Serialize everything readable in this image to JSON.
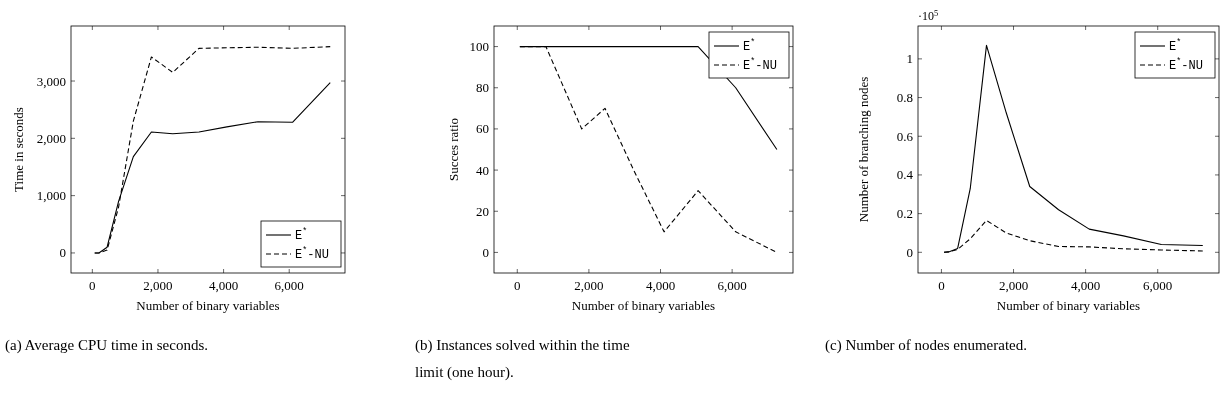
{
  "chart_data": [
    {
      "type": "line",
      "xlabel": "Number of binary variables",
      "ylabel": "Time in seconds",
      "x": [
        72,
        200,
        450,
        800,
        1250,
        1800,
        2450,
        3250,
        4100,
        5050,
        6100,
        7250
      ],
      "xlim": [
        -650,
        7700
      ],
      "xticks": [
        {
          "value": 0,
          "label": "0"
        },
        {
          "value": 2000,
          "label": "2,000"
        },
        {
          "value": 4000,
          "label": "4,000"
        },
        {
          "value": 6000,
          "label": "6,000"
        }
      ],
      "ylim": [
        -350,
        3960
      ],
      "yticks": [
        0,
        {
          "value": 1000,
          "label": "1,000"
        },
        {
          "value": 2000,
          "label": "2,000"
        },
        {
          "value": 3000,
          "label": "3,000"
        }
      ],
      "grid": false,
      "legend": "bottom right",
      "marker": "none",
      "annotations": [
        "(a) Average CPU time in seconds."
      ],
      "series": [
        {
          "name": "E$^{*}$",
          "color": "#000000",
          "line_style": "solid",
          "values": [
            0,
            0,
            100,
            900,
            1680,
            2110,
            2080,
            2110,
            2200,
            2290,
            2280,
            2970
          ]
        },
        {
          "name": "E$^{*}$-NU",
          "color": "#000000",
          "line_style": "dashed",
          "values": [
            0,
            0,
            50,
            800,
            2300,
            3420,
            3150,
            3570,
            3580,
            3590,
            3570,
            3600
          ]
        }
      ]
    },
    {
      "type": "line",
      "xlabel": "Number of binary variables",
      "ylabel": "Succes ratio",
      "x": [
        72,
        200,
        450,
        800,
        1250,
        1800,
        2450,
        3250,
        4100,
        5050,
        6100,
        7250
      ],
      "xlim": [
        -650,
        7700
      ],
      "xticks": [
        {
          "value": 0,
          "label": "0"
        },
        {
          "value": 2000,
          "label": "2,000"
        },
        {
          "value": 4000,
          "label": "4,000"
        },
        {
          "value": 6000,
          "label": "6,000"
        }
      ],
      "ylim": [
        -10,
        110
      ],
      "yticks": [
        0,
        20,
        40,
        60,
        80,
        100
      ],
      "grid": false,
      "legend": "top right",
      "marker": "none",
      "annotations": [
        "(b) Instances solved within the time limit (one hour)."
      ],
      "series": [
        {
          "name": "E$^{*}$",
          "color": "#000000",
          "line_style": "solid",
          "values": [
            100,
            100,
            100,
            100,
            100,
            100,
            100,
            100,
            100,
            100,
            80,
            50
          ]
        },
        {
          "name": "E$^{*}$-NU",
          "color": "#000000",
          "line_style": "dashed",
          "values": [
            100,
            100,
            100,
            100,
            82,
            60,
            70,
            40,
            10,
            30,
            10,
            0
          ]
        }
      ]
    },
    {
      "type": "line",
      "xlabel": "Number of binary variables",
      "ylabel": "Number of branching nodes",
      "x": [
        72,
        200,
        450,
        800,
        1250,
        1800,
        2450,
        3250,
        4100,
        5050,
        6100,
        7250
      ],
      "xlim": [
        -650,
        7700
      ],
      "xticks": [
        {
          "value": 0,
          "label": "0"
        },
        {
          "value": 2000,
          "label": "2,000"
        },
        {
          "value": 4000,
          "label": "4,000"
        },
        {
          "value": 6000,
          "label": "6,000"
        }
      ],
      "ylim": [
        -0.107,
        1.17
      ],
      "yticks": [
        0,
        0.2,
        0.4,
        0.6,
        0.8,
        1
      ],
      "grid": false,
      "legend": "top right",
      "marker": "none",
      "annotations": [
        "·10$^{5}$",
        "(c) Number of nodes enumerated."
      ],
      "series": [
        {
          "name": "E$^{*}$",
          "color": "#000000",
          "line_style": "solid",
          "values": [
            0,
            0.002,
            0.02,
            0.33,
            1.07,
            0.72,
            0.34,
            0.22,
            0.12,
            0.085,
            0.04,
            0.035
          ]
        },
        {
          "name": "E$^{*}$-NU",
          "color": "#000000",
          "line_style": "dashed",
          "values": [
            0,
            0.002,
            0.015,
            0.07,
            0.165,
            0.1,
            0.06,
            0.03,
            0.028,
            0.018,
            0.012,
            0.007
          ]
        }
      ]
    }
  ]
}
